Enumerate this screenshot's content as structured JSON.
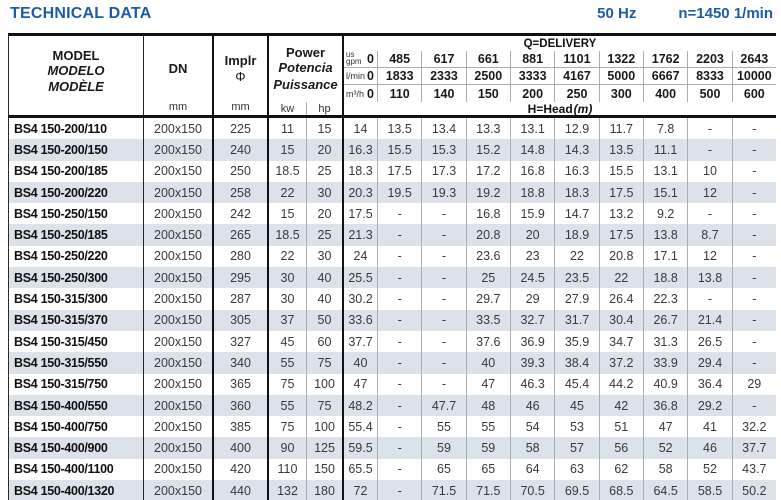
{
  "header": {
    "title": "TECHNICAL DATA",
    "frequency": "50 Hz",
    "speed": "n=1450 1/min"
  },
  "colors": {
    "accent": "#1b5da8",
    "stripe": "#dce2e9"
  },
  "table": {
    "columns": {
      "model": {
        "lines": [
          "MODEL",
          "MODELO",
          "MODÈLE"
        ]
      },
      "dn": {
        "label": "DN",
        "unit": "mm"
      },
      "impeller": {
        "label": "Implr",
        "symbol": "Φ",
        "unit": "mm"
      },
      "power": {
        "lines": [
          "Power",
          "Potencia",
          "Puissance"
        ],
        "unit_kw": "kw",
        "unit_hp": "hp"
      }
    },
    "delivery": {
      "title": "Q=DELIVERY",
      "gpm_unit": {
        "top": "us",
        "bottom": "gpm"
      },
      "lmin_unit": "l/min",
      "m3h_unit": "m³/h",
      "head_label": "H=Head",
      "head_unit": "(m)",
      "gpm": [
        "0",
        "485",
        "617",
        "661",
        "881",
        "1101",
        "1322",
        "1762",
        "2203",
        "2643"
      ],
      "lmin": [
        "0",
        "1833",
        "2333",
        "2500",
        "3333",
        "4167",
        "5000",
        "6667",
        "8333",
        "10000"
      ],
      "m3h": [
        "0",
        "110",
        "140",
        "150",
        "200",
        "250",
        "300",
        "400",
        "500",
        "600"
      ]
    },
    "rows": [
      {
        "model": "BS4 150-200/110",
        "dn": "200x150",
        "impeller": "225",
        "kw": "11",
        "hp": "15",
        "heads": [
          "14",
          "13.5",
          "13.4",
          "13.3",
          "13.1",
          "12.9",
          "11.7",
          "7.8",
          "-",
          "-"
        ]
      },
      {
        "model": "BS4 150-200/150",
        "dn": "200x150",
        "impeller": "240",
        "kw": "15",
        "hp": "20",
        "heads": [
          "16.3",
          "15.5",
          "15.3",
          "15.2",
          "14.8",
          "14.3",
          "13.5",
          "11.1",
          "-",
          "-"
        ]
      },
      {
        "model": "BS4 150-200/185",
        "dn": "200x150",
        "impeller": "250",
        "kw": "18.5",
        "hp": "25",
        "heads": [
          "18.3",
          "17.5",
          "17.3",
          "17.2",
          "16.8",
          "16.3",
          "15.5",
          "13.1",
          "10",
          "-"
        ]
      },
      {
        "model": "BS4 150-200/220",
        "dn": "200x150",
        "impeller": "258",
        "kw": "22",
        "hp": "30",
        "heads": [
          "20.3",
          "19.5",
          "19.3",
          "19.2",
          "18.8",
          "18.3",
          "17.5",
          "15.1",
          "12",
          "-"
        ]
      },
      {
        "model": "BS4 150-250/150",
        "dn": "200x150",
        "impeller": "242",
        "kw": "15",
        "hp": "20",
        "heads": [
          "17.5",
          "-",
          "-",
          "16.8",
          "15.9",
          "14.7",
          "13.2",
          "9.2",
          "-",
          "-"
        ]
      },
      {
        "model": "BS4 150-250/185",
        "dn": "200x150",
        "impeller": "265",
        "kw": "18.5",
        "hp": "25",
        "heads": [
          "21.3",
          "-",
          "-",
          "20.8",
          "20",
          "18.9",
          "17.5",
          "13.8",
          "8.7",
          "-"
        ]
      },
      {
        "model": "BS4 150-250/220",
        "dn": "200x150",
        "impeller": "280",
        "kw": "22",
        "hp": "30",
        "heads": [
          "24",
          "-",
          "-",
          "23.6",
          "23",
          "22",
          "20.8",
          "17.1",
          "12",
          "-"
        ]
      },
      {
        "model": "BS4 150-250/300",
        "dn": "200x150",
        "impeller": "295",
        "kw": "30",
        "hp": "40",
        "heads": [
          "25.5",
          "-",
          "-",
          "25",
          "24.5",
          "23.5",
          "22",
          "18.8",
          "13.8",
          "-"
        ]
      },
      {
        "model": "BS4 150-315/300",
        "dn": "200x150",
        "impeller": "287",
        "kw": "30",
        "hp": "40",
        "heads": [
          "30.2",
          "-",
          "-",
          "29.7",
          "29",
          "27.9",
          "26.4",
          "22.3",
          "-",
          "-"
        ]
      },
      {
        "model": "BS4 150-315/370",
        "dn": "200x150",
        "impeller": "305",
        "kw": "37",
        "hp": "50",
        "heads": [
          "33.6",
          "-",
          "-",
          "33.5",
          "32.7",
          "31.7",
          "30.4",
          "26.7",
          "21.4",
          "-"
        ]
      },
      {
        "model": "BS4 150-315/450",
        "dn": "200x150",
        "impeller": "327",
        "kw": "45",
        "hp": "60",
        "heads": [
          "37.7",
          "-",
          "-",
          "37.6",
          "36.9",
          "35.9",
          "34.7",
          "31.3",
          "26.5",
          "-"
        ]
      },
      {
        "model": "BS4 150-315/550",
        "dn": "200x150",
        "impeller": "340",
        "kw": "55",
        "hp": "75",
        "heads": [
          "40",
          "-",
          "-",
          "40",
          "39.3",
          "38.4",
          "37.2",
          "33.9",
          "29.4",
          "-"
        ]
      },
      {
        "model": "BS4 150-315/750",
        "dn": "200x150",
        "impeller": "365",
        "kw": "75",
        "hp": "100",
        "heads": [
          "47",
          "-",
          "-",
          "47",
          "46.3",
          "45.4",
          "44.2",
          "40.9",
          "36.4",
          "29"
        ]
      },
      {
        "model": "BS4 150-400/550",
        "dn": "200x150",
        "impeller": "360",
        "kw": "55",
        "hp": "75",
        "heads": [
          "48.2",
          "-",
          "47.7",
          "48",
          "46",
          "45",
          "42",
          "36.8",
          "29.2",
          "-"
        ]
      },
      {
        "model": "BS4 150-400/750",
        "dn": "200x150",
        "impeller": "385",
        "kw": "75",
        "hp": "100",
        "heads": [
          "55.4",
          "-",
          "55",
          "55",
          "54",
          "53",
          "51",
          "47",
          "41",
          "32.2"
        ]
      },
      {
        "model": "BS4 150-400/900",
        "dn": "200x150",
        "impeller": "400",
        "kw": "90",
        "hp": "125",
        "heads": [
          "59.5",
          "-",
          "59",
          "59",
          "58",
          "57",
          "56",
          "52",
          "46",
          "37.7"
        ]
      },
      {
        "model": "BS4 150-400/1100",
        "dn": "200x150",
        "impeller": "420",
        "kw": "110",
        "hp": "150",
        "heads": [
          "65.5",
          "-",
          "65",
          "65",
          "64",
          "63",
          "62",
          "58",
          "52",
          "43.7"
        ]
      },
      {
        "model": "BS4 150-400/1320",
        "dn": "200x150",
        "impeller": "440",
        "kw": "132",
        "hp": "180",
        "heads": [
          "72",
          "-",
          "71.5",
          "71.5",
          "70.5",
          "69.5",
          "68.5",
          "64.5",
          "58.5",
          "50.2"
        ]
      }
    ]
  }
}
